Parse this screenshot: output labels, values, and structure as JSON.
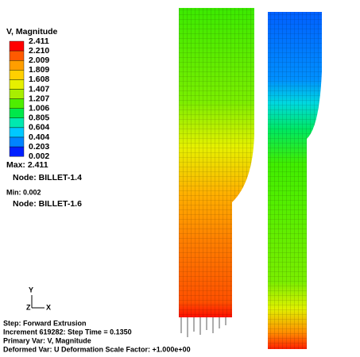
{
  "legend": {
    "title": "V, Magnitude",
    "labels": [
      "2.411",
      "2.210",
      "2.009",
      "1.809",
      "1.608",
      "1.407",
      "1.207",
      "1.006",
      "0.805",
      "0.604",
      "0.404",
      "0.203",
      "0.002"
    ],
    "colors": [
      "#ff0000",
      "#ff5a00",
      "#ff9e00",
      "#ffd000",
      "#e6f000",
      "#a8ee00",
      "#4eee00",
      "#00e84a",
      "#00e8b0",
      "#00c8ff",
      "#0084ff",
      "#0020ff"
    ]
  },
  "max": {
    "label": "Max: 2.411",
    "node": "Node: BILLET-1.4"
  },
  "min": {
    "label": "Min: 0.002",
    "node": "Node: BILLET-1.6"
  },
  "triad": {
    "y": "Y",
    "z": "Z",
    "x": "X"
  },
  "footer": [
    "Step: Forward Extrusion",
    "Increment   619282: Step Time =    0.1350",
    "Primary Var: V, Magnitude",
    "Deformed Var: U   Deformation Scale Factor: +1.000e+00"
  ]
}
